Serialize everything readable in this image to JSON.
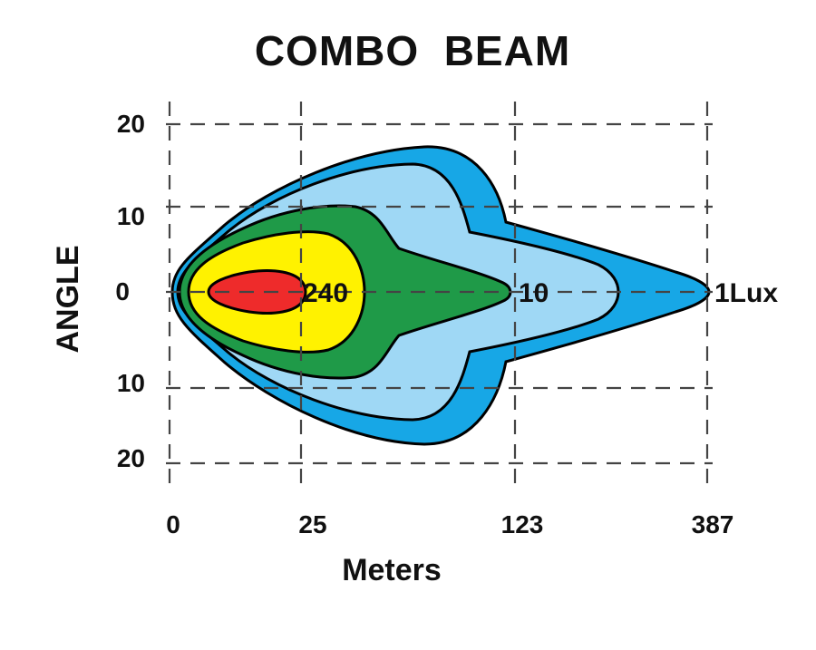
{
  "chart_data": {
    "type": "beam-pattern",
    "title": "COMBO  BEAM",
    "xlabel": "Meters",
    "ylabel": "ANGLE",
    "x_ticks": [
      "0",
      "25",
      "123",
      "387"
    ],
    "y_ticks": [
      "20",
      "10",
      "0",
      "10",
      "20"
    ],
    "grid": true,
    "zones": [
      {
        "name": "1Lux",
        "label": "1Lux",
        "lux": 1,
        "reach_m": 387,
        "color": "#17a7e6"
      },
      {
        "name": "light-blue",
        "label": "",
        "color": "#9fd8f5"
      },
      {
        "name": "10",
        "label": "10",
        "lux": 10,
        "reach_m": 123,
        "color": "#1f9a48"
      },
      {
        "name": "yellow",
        "label": "",
        "color": "#fff200"
      },
      {
        "name": "240",
        "label": "240",
        "lux": 240,
        "color": "#ee2b2b"
      }
    ]
  }
}
